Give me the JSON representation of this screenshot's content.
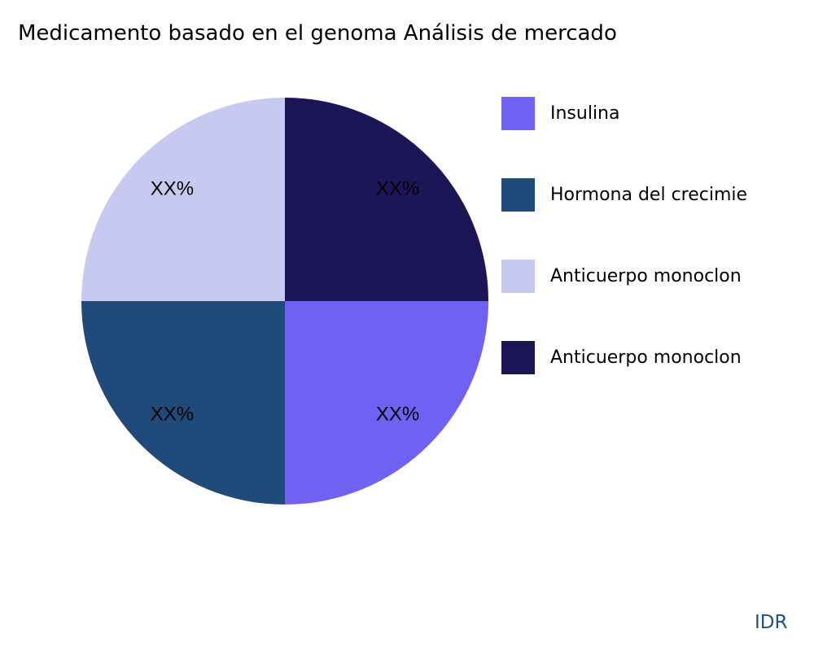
{
  "chart_data": {
    "type": "pie",
    "title": "Medicamento basado en el genoma Análisis de mercado",
    "categories": [
      "Insulina",
      "Hormona del crecimie",
      "Anticuerpo monoclon",
      "Anticuerpo monoclon"
    ],
    "values": [
      25,
      25,
      25,
      25
    ],
    "data_labels": [
      "XX%",
      "XX%",
      "XX%",
      "XX%"
    ],
    "colors": [
      "#6f61f2",
      "#1f4a7a",
      "#c8c9f0",
      "#1c1656"
    ],
    "legend_position": "right",
    "direction": "clockwise",
    "start_angle": "3 o'clock"
  },
  "brand": "IDR"
}
